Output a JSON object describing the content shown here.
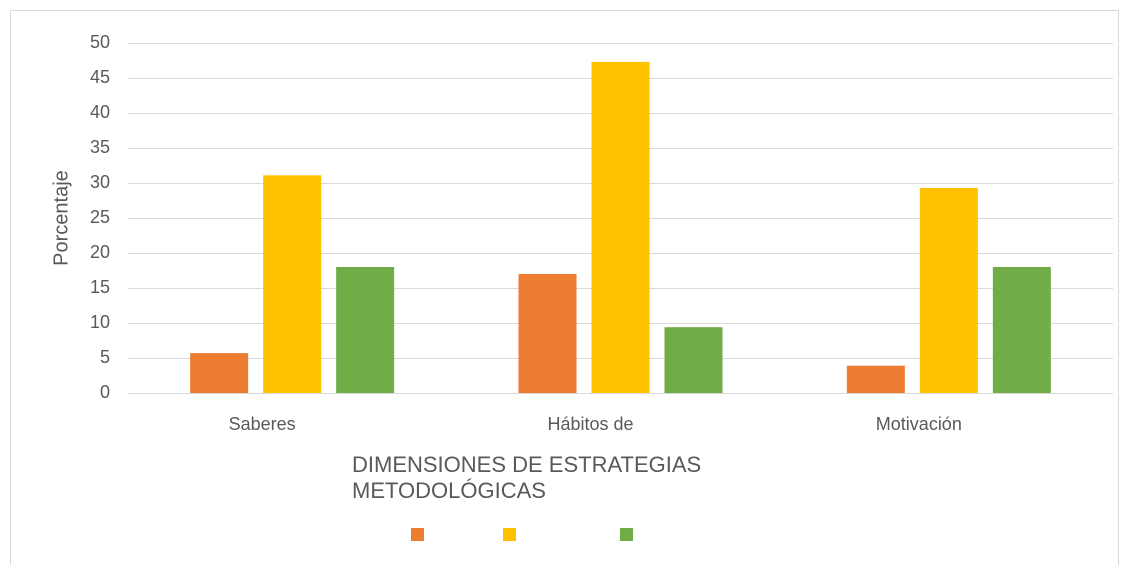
{
  "chart_data": {
    "type": "bar",
    "x_label": "DIMENSIONES DE ESTRATEGIAS METODOLÓGICAS",
    "y_label": "Porcentaje",
    "categories": [
      "Saberes",
      "Hábitos de",
      "Motivación"
    ],
    "series": [
      {
        "color": "#ed7d31",
        "values": [
          5.7,
          17.0,
          3.9
        ]
      },
      {
        "color": "#ffc000",
        "values": [
          31.1,
          47.3,
          29.3
        ]
      },
      {
        "color": "#70ad47",
        "values": [
          18.0,
          9.4,
          18.0
        ]
      }
    ],
    "ylim": [
      0,
      50
    ],
    "yticks": [
      0,
      5,
      10,
      15,
      20,
      25,
      30,
      35,
      40,
      45,
      50
    ],
    "grid": true
  }
}
